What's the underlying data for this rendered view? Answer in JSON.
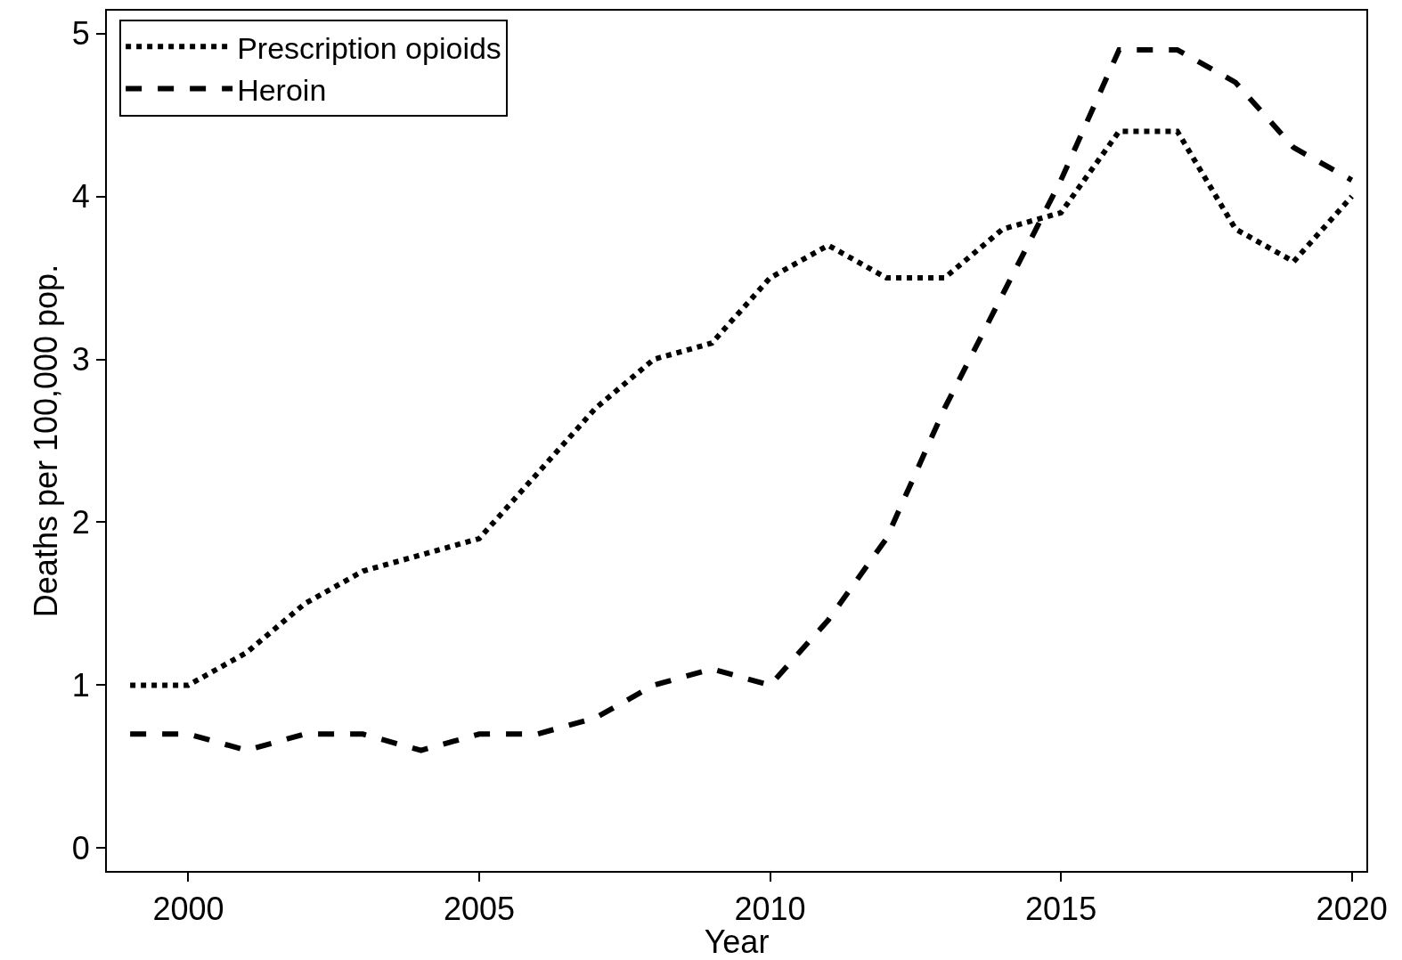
{
  "chart_data": {
    "type": "line",
    "xlabel": "Year",
    "ylabel": "Deaths per 100,000 pop.",
    "x": [
      1999,
      2000,
      2001,
      2002,
      2003,
      2004,
      2005,
      2006,
      2007,
      2008,
      2009,
      2010,
      2011,
      2012,
      2013,
      2014,
      2015,
      2016,
      2017,
      2018,
      2019,
      2020
    ],
    "series": [
      {
        "name": "Prescription opioids",
        "color": "#000000",
        "line_style": "dotted",
        "values": [
          1.0,
          1.0,
          1.2,
          1.5,
          1.7,
          1.8,
          1.9,
          2.3,
          2.7,
          3.0,
          3.1,
          3.5,
          3.7,
          3.5,
          3.5,
          3.8,
          3.9,
          4.4,
          4.4,
          3.8,
          3.6,
          4.0
        ]
      },
      {
        "name": "Heroin",
        "color": "#000000",
        "line_style": "dashed",
        "values": [
          0.7,
          0.7,
          0.6,
          0.7,
          0.7,
          0.6,
          0.7,
          0.7,
          0.8,
          1.0,
          1.1,
          1.0,
          1.4,
          1.9,
          2.7,
          3.4,
          4.1,
          4.9,
          4.9,
          4.7,
          4.3,
          4.1
        ]
      }
    ],
    "xlim": [
      1998.6,
      2020.25
    ],
    "xticks": [
      2000,
      2005,
      2010,
      2015,
      2020
    ],
    "ylim": [
      -0.14,
      5.14
    ],
    "yticks": [
      0,
      1,
      2,
      3,
      4,
      5
    ],
    "legend": "top left",
    "marker": "none"
  }
}
